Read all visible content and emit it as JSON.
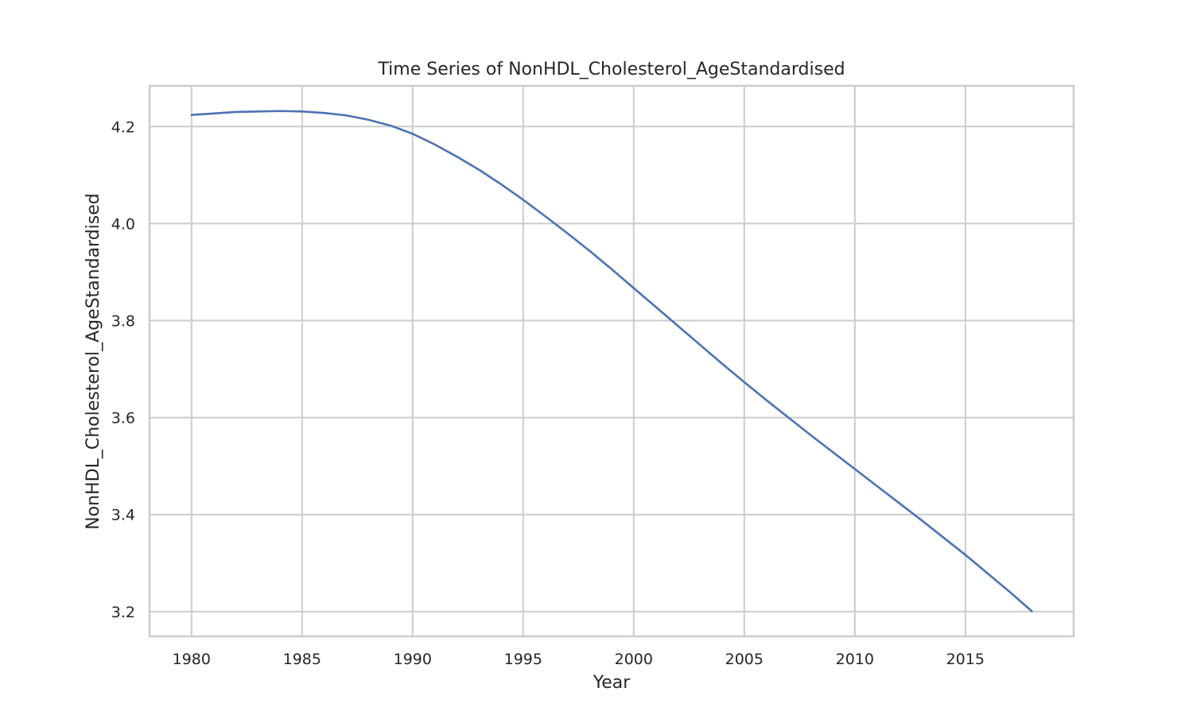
{
  "chart_data": {
    "type": "line",
    "title": "Time Series of NonHDL_Cholesterol_AgeStandardised",
    "xlabel": "Year",
    "ylabel": "NonHDL_Cholesterol_AgeStandardised",
    "xlim": [
      1978.1,
      2019.9
    ],
    "ylim": [
      3.149,
      4.284
    ],
    "x_ticks": [
      1980,
      1985,
      1990,
      1995,
      2000,
      2005,
      2010,
      2015
    ],
    "y_ticks": [
      3.2,
      3.4,
      3.6,
      3.8,
      4.0,
      4.2
    ],
    "y_tick_labels": [
      "3.2",
      "3.4",
      "3.6",
      "3.8",
      "4.0",
      "4.2"
    ],
    "grid": true,
    "legend": "none",
    "series": [
      {
        "color": "#4c72b0",
        "x": [
          1980,
          1981,
          1982,
          1983,
          1984,
          1985,
          1986,
          1987,
          1988,
          1989,
          1990,
          1991,
          1992,
          1993,
          1994,
          1995,
          1996,
          1997,
          1998,
          1999,
          2000,
          2001,
          2002,
          2003,
          2004,
          2005,
          2006,
          2007,
          2008,
          2009,
          2010,
          2011,
          2012,
          2013,
          2014,
          2015,
          2016,
          2017,
          2018
        ],
        "values": [
          4.224,
          4.227,
          4.23,
          4.231,
          4.232,
          4.231,
          4.228,
          4.223,
          4.214,
          4.202,
          4.185,
          4.163,
          4.138,
          4.111,
          4.081,
          4.049,
          4.015,
          3.98,
          3.944,
          3.906,
          3.867,
          3.828,
          3.789,
          3.75,
          3.711,
          3.673,
          3.636,
          3.6,
          3.564,
          3.529,
          3.494,
          3.459,
          3.424,
          3.389,
          3.353,
          3.317,
          3.279,
          3.241,
          3.201
        ]
      }
    ]
  }
}
